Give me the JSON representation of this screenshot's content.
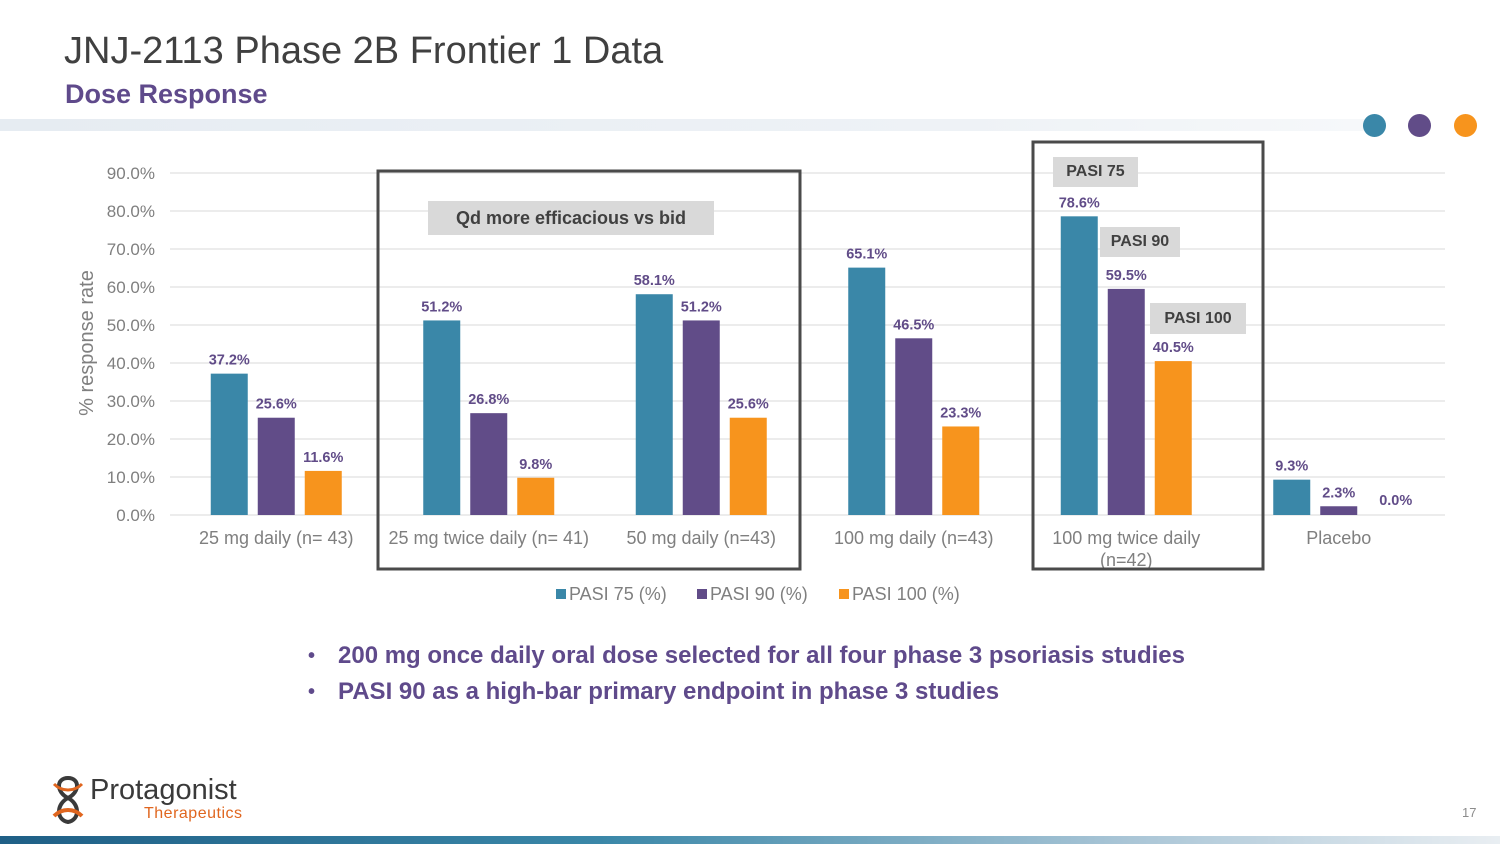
{
  "header": {
    "title": "JNJ-2113 Phase 2B Frontier 1 Data",
    "subtitle": "Dose Response"
  },
  "colors": {
    "title": "#404040",
    "accent_purple": "#5f4a8b",
    "pasi75": "#3a87a8",
    "pasi90": "#614c88",
    "pasi100": "#f7941d"
  },
  "chart_data": {
    "type": "bar",
    "categories": [
      "25 mg daily (n= 43)",
      "25 mg twice daily (n= 41)",
      "50 mg daily (n=43)",
      "100 mg daily (n=43)",
      "100 mg twice daily (n=42)",
      "Placebo"
    ],
    "category_lines": [
      [
        "25 mg daily (n= 43)"
      ],
      [
        "25 mg twice daily (n= 41)"
      ],
      [
        "50 mg daily (n=43)"
      ],
      [
        "100 mg daily (n=43)"
      ],
      [
        "100 mg twice daily",
        "(n=42)"
      ],
      [
        "Placebo"
      ]
    ],
    "series": [
      {
        "name": "PASI 75 (%)",
        "color": "#3a87a8",
        "values": [
          37.2,
          51.2,
          58.1,
          65.1,
          78.6,
          9.3
        ],
        "labels": [
          "37.2%",
          "51.2%",
          "58.1%",
          "65.1%",
          "78.6%",
          "9.3%"
        ]
      },
      {
        "name": "PASI 90 (%)",
        "color": "#614c88",
        "values": [
          25.6,
          26.8,
          51.2,
          46.5,
          59.5,
          2.3
        ],
        "labels": [
          "25.6%",
          "26.8%",
          "51.2%",
          "46.5%",
          "59.5%",
          "2.3%"
        ]
      },
      {
        "name": "PASI 100 (%)",
        "color": "#f7941d",
        "values": [
          11.6,
          9.8,
          25.6,
          23.3,
          40.5,
          0.0
        ],
        "labels": [
          "11.6%",
          "9.8%",
          "25.6%",
          "23.3%",
          "40.5%",
          "0.0%"
        ]
      }
    ],
    "ylabel": "% response rate",
    "xlabel": "",
    "ylim": [
      0,
      90
    ],
    "yticks": [
      0,
      10,
      20,
      30,
      40,
      50,
      60,
      70,
      80,
      90
    ],
    "ytick_labels": [
      "0.0%",
      "10.0%",
      "20.0%",
      "30.0%",
      "40.0%",
      "50.0%",
      "60.0%",
      "70.0%",
      "80.0%",
      "90.0%"
    ],
    "grid": true,
    "legend_position": "bottom-center",
    "annotations": {
      "qd_box": "Qd more efficacious vs bid",
      "pasi75_callout": "PASI 75",
      "pasi90_callout": "PASI 90",
      "pasi100_callout": "PASI 100"
    }
  },
  "bullets": [
    "200 mg once daily oral dose selected for all four phase 3 psoriasis studies",
    "PASI 90 as a high-bar primary endpoint in phase 3 studies"
  ],
  "bullet_mark": "•",
  "footer": {
    "logo_name": "Protagonist",
    "logo_sub": "Therapeutics",
    "page_number": "17"
  }
}
